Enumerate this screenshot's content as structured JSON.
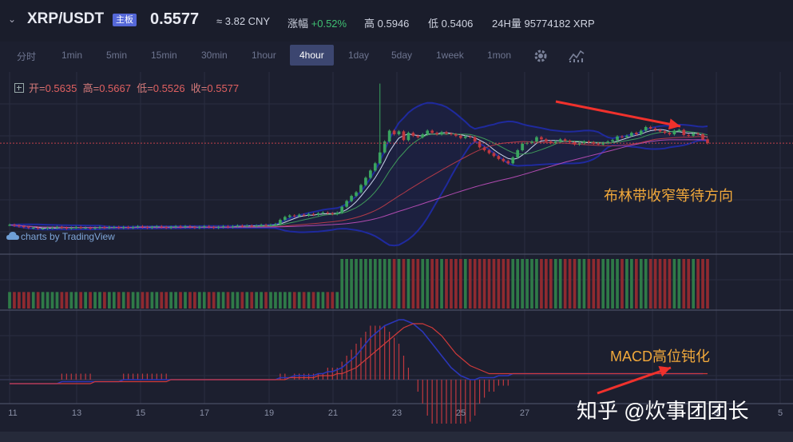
{
  "header": {
    "symbol": "XRP/USDT",
    "badge": "主板",
    "price": "0.5577",
    "cny": "≈ 3.82 CNY",
    "change_label": "涨幅",
    "change_value": "+0.52%",
    "high_label": "高",
    "high_value": "0.5946",
    "low_label": "低",
    "low_value": "0.5406",
    "volume_label": "24H量",
    "volume_value": "95774182 XRP"
  },
  "toolbar": {
    "intervals": [
      "分时",
      "1min",
      "5min",
      "15min",
      "30min",
      "1hour",
      "4hour",
      "1day",
      "5day",
      "1week",
      "1mon"
    ],
    "active": "4hour",
    "settings_icon": "gear-icon",
    "indicators_icon": "indicators-icon"
  },
  "legend": {
    "open_label": "开=",
    "open": "0.5635",
    "high_label": "高=",
    "high": "0.5667",
    "low_label": "低=",
    "low": "0.5526",
    "close_label": "收=",
    "close": "0.5577"
  },
  "branding": "charts by TradingView",
  "annotations": {
    "bollinger": "布林带收窄等待方向",
    "macd": "MACD高位钝化"
  },
  "watermark": "知乎 @炊事团团长",
  "colors": {
    "up": "#3aa45f",
    "down": "#c0383f",
    "bb": "#1f2a9e",
    "ma_fast": "#c9d3ea",
    "ma_mid": "#3f9a5a",
    "ma_slow": "#b23a48",
    "ma_long": "#b04ab0",
    "arrow": "#f0312c"
  },
  "chart_data": {
    "type": "candlestick",
    "interval": "4hour",
    "x_tick_labels": [
      "11",
      "13",
      "15",
      "17",
      "19",
      "21",
      "23",
      "25",
      "27",
      "3",
      "5"
    ],
    "last_price": 0.5577,
    "price_series": [
      0.445,
      0.444,
      0.443,
      0.442,
      0.441,
      0.441,
      0.44,
      0.44,
      0.441,
      0.441,
      0.442,
      0.441,
      0.44,
      0.441,
      0.442,
      0.441,
      0.441,
      0.44,
      0.441,
      0.442,
      0.441,
      0.442,
      0.442,
      0.441,
      0.442,
      0.441,
      0.442,
      0.443,
      0.442,
      0.441,
      0.442,
      0.443,
      0.442,
      0.441,
      0.442,
      0.443,
      0.442,
      0.443,
      0.442,
      0.441,
      0.442,
      0.443,
      0.442,
      0.441,
      0.442,
      0.443,
      0.442,
      0.443,
      0.444,
      0.443,
      0.444,
      0.443,
      0.444,
      0.445,
      0.444,
      0.445,
      0.446,
      0.452,
      0.456,
      0.458,
      0.457,
      0.459,
      0.458,
      0.46,
      0.459,
      0.461,
      0.462,
      0.461,
      0.46,
      0.462,
      0.47,
      0.478,
      0.485,
      0.49,
      0.5,
      0.51,
      0.52,
      0.53,
      0.545,
      0.56,
      0.575,
      0.57,
      0.574,
      0.562,
      0.572,
      0.568,
      0.566,
      0.57,
      0.575,
      0.572,
      0.57,
      0.573,
      0.571,
      0.57,
      0.568,
      0.565,
      0.567,
      0.566,
      0.56,
      0.552,
      0.548,
      0.544,
      0.54,
      0.536,
      0.533,
      0.53,
      0.538,
      0.548,
      0.557,
      0.558,
      0.56,
      0.566,
      0.563,
      0.56,
      0.558,
      0.56,
      0.563,
      0.561,
      0.559,
      0.556,
      0.558,
      0.56,
      0.559,
      0.557,
      0.556,
      0.558,
      0.56,
      0.562,
      0.567,
      0.566,
      0.568,
      0.572,
      0.57,
      0.575,
      0.58,
      0.578,
      0.576,
      0.574,
      0.572,
      0.57,
      0.575,
      0.576,
      0.569,
      0.568,
      0.571,
      0.57,
      0.563,
      0.5577
    ],
    "spike_high": 0.64,
    "volume_series": [
      1,
      1,
      1,
      1,
      1,
      1,
      1,
      1,
      1,
      1,
      1,
      1,
      1,
      1,
      1,
      1,
      1,
      1,
      1,
      1,
      1,
      1,
      1,
      1,
      1,
      1,
      1,
      1,
      1,
      1,
      1,
      1,
      1,
      1,
      1,
      1,
      1,
      1,
      1,
      1,
      1,
      1,
      1,
      1,
      1,
      1,
      1,
      1,
      1,
      1,
      1,
      1,
      1,
      1,
      1,
      1,
      1,
      1,
      1,
      1,
      1,
      1,
      1,
      1,
      1,
      1,
      1,
      1,
      1,
      1,
      3,
      3,
      3,
      3,
      3,
      3,
      3,
      3,
      3,
      3,
      3,
      3,
      3,
      3,
      3,
      3,
      3,
      3,
      3,
      3,
      3,
      3,
      3,
      3,
      3,
      3,
      3,
      3,
      3,
      3,
      3,
      3,
      3,
      3,
      3,
      3,
      3,
      3,
      3,
      3,
      3,
      3,
      3,
      3,
      3,
      3,
      3,
      3,
      3,
      3,
      3,
      3,
      3,
      3,
      3,
      3,
      3,
      3,
      3,
      3,
      3,
      3,
      3,
      3,
      3,
      3,
      3,
      3,
      3,
      3,
      3,
      3,
      3,
      3,
      3,
      3,
      3,
      3
    ],
    "macd_line": [
      -0.002,
      -0.002,
      -0.002,
      -0.002,
      -0.002,
      -0.002,
      -0.002,
      -0.002,
      -0.002,
      -0.002,
      -0.002,
      -0.001,
      -0.001,
      -0.001,
      -0.001,
      -0.001,
      -0.001,
      -0.001,
      -0.001,
      -0.001,
      -0.001,
      -0.001,
      -0.001,
      -0.001,
      0.0,
      0.0,
      0.0,
      0.0,
      0.0,
      0.0,
      0.0,
      0.0,
      0.0,
      0.0,
      0.0,
      0.0,
      0.0,
      0.0,
      0.0,
      0.0,
      0.0,
      0.0,
      0.0,
      0.0,
      0.0,
      0.0,
      0.0,
      0.0,
      0.0,
      0.0,
      0.0,
      0.0,
      0.0,
      0.0,
      0.0,
      0.0,
      0.0,
      0.001,
      0.001,
      0.001,
      0.002,
      0.002,
      0.002,
      0.002,
      0.002,
      0.003,
      0.003,
      0.004,
      0.004,
      0.005,
      0.006,
      0.008,
      0.01,
      0.012,
      0.015,
      0.018,
      0.021,
      0.023,
      0.025,
      0.027,
      0.028,
      0.029,
      0.03,
      0.03,
      0.029,
      0.028,
      0.026,
      0.024,
      0.021,
      0.018,
      0.015,
      0.012,
      0.009,
      0.006,
      0.004,
      0.002,
      0.001,
      0.0,
      0.0,
      0.001,
      0.001,
      0.001,
      0.001,
      0.002,
      0.002,
      0.002,
      0.003,
      0.003,
      0.003,
      0.003,
      0.003,
      0.003,
      0.003,
      0.003,
      0.003,
      0.003,
      0.003,
      0.003,
      0.003,
      0.003,
      0.003,
      0.003,
      0.003,
      0.003,
      0.003,
      0.003,
      0.003,
      0.003,
      0.003,
      0.003,
      0.003,
      0.003,
      0.003,
      0.003,
      0.003,
      0.003,
      0.003,
      0.003,
      0.003,
      0.003,
      0.003,
      0.003,
      0.003,
      0.003,
      0.003,
      0.003,
      0.003
    ],
    "macd_signal": [
      -0.002,
      -0.002,
      -0.002,
      -0.002,
      -0.002,
      -0.002,
      -0.002,
      -0.002,
      -0.002,
      -0.002,
      -0.002,
      -0.002,
      -0.002,
      -0.002,
      -0.002,
      -0.002,
      -0.002,
      -0.002,
      -0.001,
      -0.001,
      -0.001,
      -0.001,
      -0.001,
      -0.001,
      -0.001,
      -0.001,
      -0.001,
      -0.001,
      -0.001,
      -0.001,
      -0.001,
      -0.001,
      -0.001,
      -0.001,
      0.0,
      0.0,
      0.0,
      0.0,
      0.0,
      0.0,
      0.0,
      0.0,
      0.0,
      0.0,
      0.0,
      0.0,
      0.0,
      0.0,
      0.0,
      0.0,
      0.0,
      0.0,
      0.0,
      0.0,
      0.0,
      0.0,
      0.0,
      0.0,
      0.0,
      0.001,
      0.001,
      0.001,
      0.001,
      0.001,
      0.001,
      0.002,
      0.002,
      0.002,
      0.002,
      0.003,
      0.003,
      0.004,
      0.005,
      0.006,
      0.008,
      0.01,
      0.012,
      0.014,
      0.016,
      0.018,
      0.02,
      0.022,
      0.024,
      0.026,
      0.027,
      0.028,
      0.028,
      0.028,
      0.027,
      0.026,
      0.024,
      0.022,
      0.019,
      0.016,
      0.013,
      0.011,
      0.009,
      0.007,
      0.006,
      0.005,
      0.004,
      0.003,
      0.003,
      0.003,
      0.003,
      0.003,
      0.003,
      0.003,
      0.003,
      0.003,
      0.003,
      0.003,
      0.003,
      0.003,
      0.003,
      0.003,
      0.003,
      0.003,
      0.003,
      0.003,
      0.003,
      0.003,
      0.003,
      0.003,
      0.003,
      0.003,
      0.003,
      0.003,
      0.003,
      0.003,
      0.003,
      0.003,
      0.003,
      0.003,
      0.003,
      0.003,
      0.003,
      0.003,
      0.003,
      0.003,
      0.003,
      0.003,
      0.003,
      0.003,
      0.003,
      0.003,
      0.003,
      0.003
    ]
  }
}
